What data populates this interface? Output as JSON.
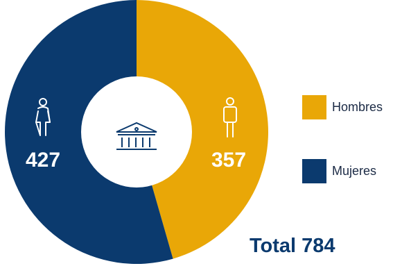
{
  "chart_data": {
    "type": "pie",
    "categories": [
      "Hombres",
      "Mujeres"
    ],
    "values": [
      357,
      427
    ],
    "colors": [
      "#e9a707",
      "#0b3a6e"
    ],
    "data_labels": [
      "357",
      "427"
    ],
    "total_label": "Total 784",
    "legend_position": "right",
    "center_icon": "bank-building-icon",
    "icons": [
      "man-icon",
      "woman-icon"
    ]
  }
}
